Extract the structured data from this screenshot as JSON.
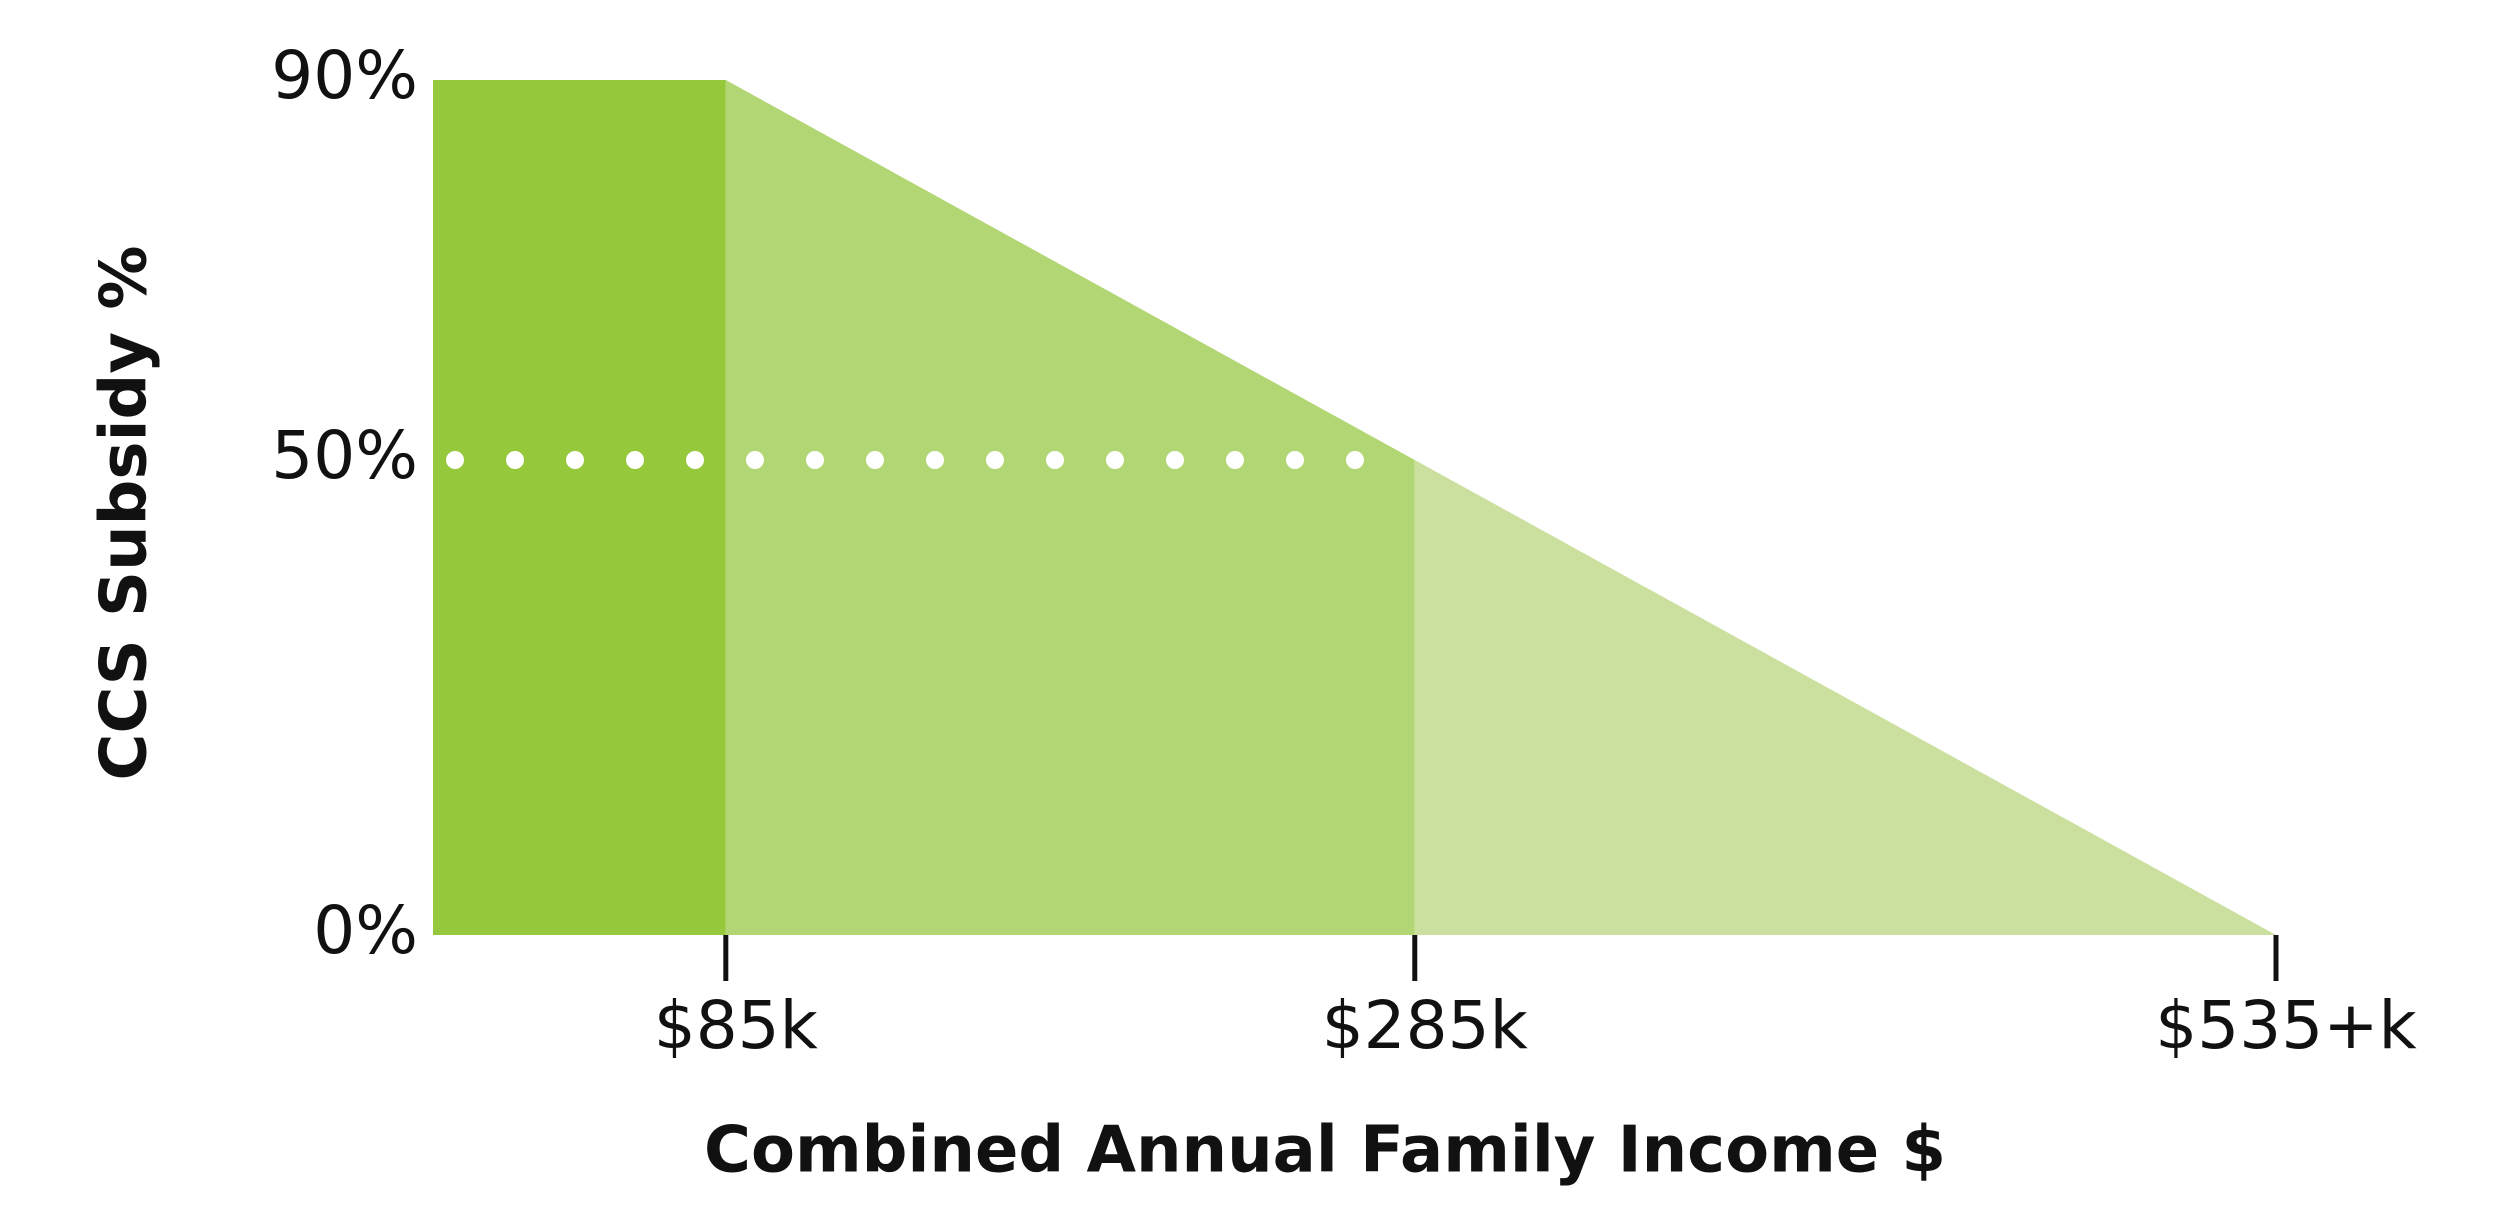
{
  "chart_data": {
    "type": "area",
    "x_label": "Combined Annual Family Income $",
    "y_label": "CCS Subsidy %",
    "x": [
      0,
      85,
      285,
      535
    ],
    "series": [
      {
        "values": [
          90,
          90,
          50,
          0
        ],
        "segment_colors": [
          "#96c83c",
          "#b3d675",
          "#cbe09e"
        ]
      }
    ],
    "xlim": [
      0,
      535
    ],
    "ylim": [
      0,
      90
    ],
    "xticks": [
      {
        "value": 85,
        "label": "$85k"
      },
      {
        "value": 285,
        "label": "$285k"
      },
      {
        "value": 535,
        "label": "$535+k"
      }
    ],
    "yticks": [
      {
        "value": 0,
        "label": "0%"
      },
      {
        "value": 50,
        "label": "50%"
      },
      {
        "value": 90,
        "label": "90%"
      }
    ],
    "reference_line": {
      "value": 50,
      "color": "#ffffff",
      "style": "dotted"
    }
  }
}
